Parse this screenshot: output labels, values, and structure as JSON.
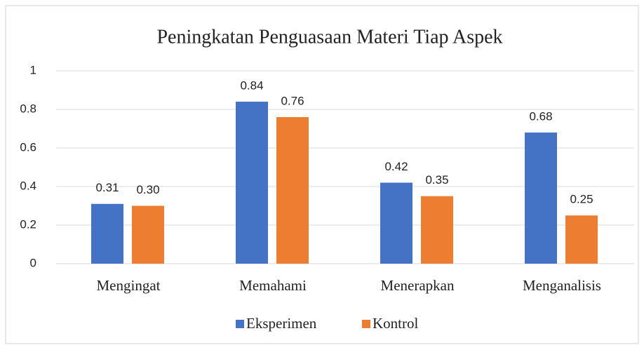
{
  "chart_data": {
    "type": "bar",
    "title": "Peningkatan Penguasaan Materi Tiap Aspek",
    "categories": [
      "Mengingat",
      "Memahami",
      "Menerapkan",
      "Menganalisis"
    ],
    "series": [
      {
        "name": "Eksperimen",
        "color": "#4472c4",
        "values": [
          0.31,
          0.84,
          0.42,
          0.68
        ],
        "value_labels": [
          "0.31",
          "0.84",
          "0.42",
          "0.68"
        ]
      },
      {
        "name": "Kontrol",
        "color": "#ed7d31",
        "values": [
          0.3,
          0.76,
          0.35,
          0.25
        ],
        "value_labels": [
          "0.30",
          "0.76",
          "0.35",
          "0.25"
        ]
      }
    ],
    "ylim": [
      0,
      1
    ],
    "yticks": [
      0,
      0.2,
      0.4,
      0.6,
      0.8,
      1
    ],
    "grid": true,
    "legend": "bottom"
  }
}
